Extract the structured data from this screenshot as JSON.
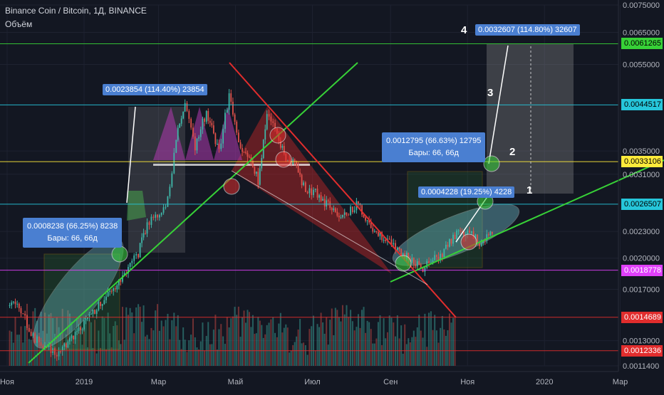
{
  "header": {
    "title": "Binance Coin / Bitcoin, 1Д, BINANCE",
    "subtitle": "Объём"
  },
  "colors": {
    "background": "#131722",
    "candle_up": "#3fb6a8",
    "candle_down": "#e0504a",
    "trend_up": "#37d137",
    "trend_down": "#e12d2d",
    "measure_box": "#4a7fd1"
  },
  "chart_data": {
    "type": "candlestick",
    "symbol": "Binance Coin / Bitcoin",
    "interval": "1Д",
    "exchange": "BINANCE",
    "y_scale": "log",
    "ylim": [
      0.00114,
      0.0075
    ],
    "y_ticks": [
      "0.0075000",
      "0.0065000",
      "0.0055000",
      "0.0035000",
      "0.0031000",
      "0.0023000",
      "0.0020000",
      "0.0017000",
      "0.0013000",
      "0.0011400"
    ],
    "x_ticks": [
      "Ноя",
      "2019",
      "Мар",
      "Май",
      "Июл",
      "Сен",
      "Ноя",
      "2020",
      "Мар"
    ],
    "close_series": [
      {
        "date": "2018-11-03",
        "value": 0.0016
      },
      {
        "date": "2018-11-12",
        "value": 0.00152
      },
      {
        "date": "2018-11-20",
        "value": 0.00135
      },
      {
        "date": "2018-12-01",
        "value": 0.00124
      },
      {
        "date": "2018-12-12",
        "value": 0.00122
      },
      {
        "date": "2018-12-25",
        "value": 0.00135
      },
      {
        "date": "2019-01-08",
        "value": 0.0015
      },
      {
        "date": "2019-01-20",
        "value": 0.00165
      },
      {
        "date": "2019-01-30",
        "value": 0.0018
      },
      {
        "date": "2019-02-08",
        "value": 0.00195
      },
      {
        "date": "2019-02-13",
        "value": 0.00205
      },
      {
        "date": "2019-02-20",
        "value": 0.0024
      },
      {
        "date": "2019-02-25",
        "value": 0.0025
      },
      {
        "date": "2019-03-05",
        "value": 0.00255
      },
      {
        "date": "2019-03-10",
        "value": 0.0029
      },
      {
        "date": "2019-03-15",
        "value": 0.00375
      },
      {
        "date": "2019-03-22",
        "value": 0.0044
      },
      {
        "date": "2019-03-30",
        "value": 0.0036
      },
      {
        "date": "2019-04-08",
        "value": 0.0043
      },
      {
        "date": "2019-04-18",
        "value": 0.0035
      },
      {
        "date": "2019-04-26",
        "value": 0.0047
      },
      {
        "date": "2019-05-05",
        "value": 0.0035
      },
      {
        "date": "2019-05-12",
        "value": 0.0034
      },
      {
        "date": "2019-05-19",
        "value": 0.003
      },
      {
        "date": "2019-05-26",
        "value": 0.0042
      },
      {
        "date": "2019-06-03",
        "value": 0.0038
      },
      {
        "date": "2019-06-10",
        "value": 0.0034
      },
      {
        "date": "2019-06-17",
        "value": 0.0033
      },
      {
        "date": "2019-06-24",
        "value": 0.0029
      },
      {
        "date": "2019-07-05",
        "value": 0.0028
      },
      {
        "date": "2019-07-15",
        "value": 0.0026
      },
      {
        "date": "2019-07-25",
        "value": 0.0025
      },
      {
        "date": "2019-08-05",
        "value": 0.00265
      },
      {
        "date": "2019-08-15",
        "value": 0.0024
      },
      {
        "date": "2019-08-28",
        "value": 0.0022
      },
      {
        "date": "2019-09-08",
        "value": 0.00205
      },
      {
        "date": "2019-09-18",
        "value": 0.002
      },
      {
        "date": "2019-09-25",
        "value": 0.0019
      },
      {
        "date": "2019-10-03",
        "value": 0.00195
      },
      {
        "date": "2019-10-12",
        "value": 0.00205
      },
      {
        "date": "2019-10-22",
        "value": 0.00225
      },
      {
        "date": "2019-11-01",
        "value": 0.0023
      },
      {
        "date": "2019-11-12",
        "value": 0.00215
      },
      {
        "date": "2019-11-22",
        "value": 0.0023
      }
    ],
    "price_levels": [
      {
        "value": "0.0061265",
        "color": "#37d137",
        "text": "#000000"
      },
      {
        "value": "0.0044517",
        "color": "#26c6da",
        "text": "#000000"
      },
      {
        "value": "0.0033106",
        "color": "#ffeb3b",
        "text": "#000000"
      },
      {
        "value": "0.0026507",
        "color": "#26c6da",
        "text": "#000000"
      },
      {
        "value": "0.0018778",
        "color": "#e040fb",
        "text": "#ffffff"
      },
      {
        "value": "0.0014689",
        "color": "#e12d2d",
        "text": "#ffffff"
      },
      {
        "value": "0.0012336",
        "color": "#e12d2d",
        "text": "#ffffff"
      }
    ],
    "measurements": [
      {
        "text": "0.0008238 (66.25%) 8238",
        "bars": "Бары: 66, 66д"
      },
      {
        "text": "0.0023854 (114.40%) 23854"
      },
      {
        "text": "0.0012795 (66.63%) 12795",
        "bars": "Бары: 66, 66д"
      },
      {
        "text": "0.0004228 (19.25%) 4228"
      },
      {
        "text": "0.0032607 (114.80%) 32607"
      }
    ],
    "wave_labels": [
      "1",
      "2",
      "3",
      "4"
    ]
  }
}
